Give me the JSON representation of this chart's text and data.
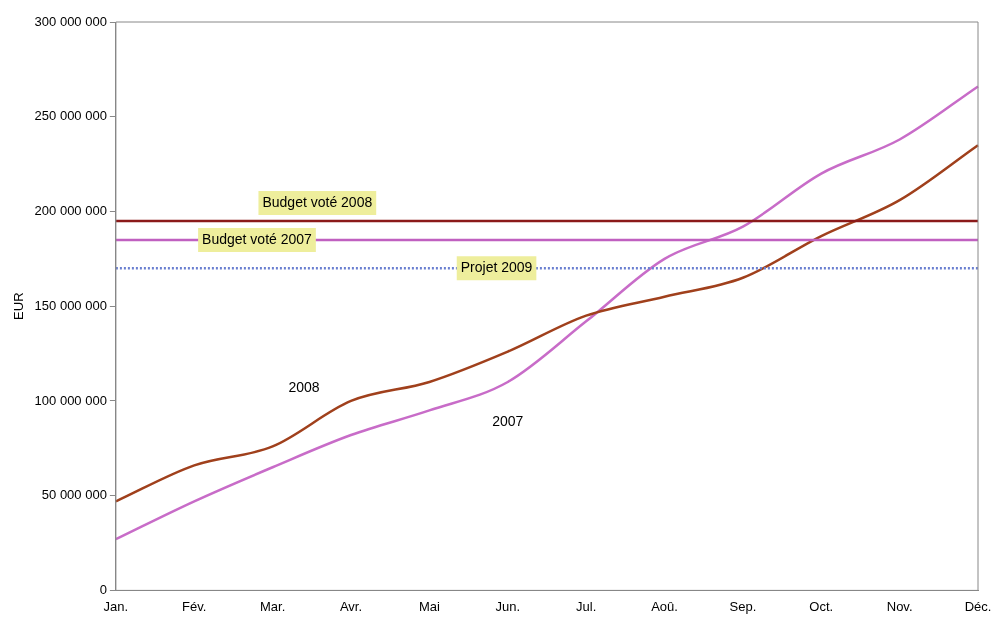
{
  "chart_data": {
    "type": "line",
    "ylabel": "EUR",
    "categories": [
      "Jan.",
      "Fév.",
      "Mar.",
      "Avr.",
      "Mai",
      "Jun.",
      "Jul.",
      "Aoû.",
      "Sep.",
      "Oct.",
      "Nov.",
      "Déc."
    ],
    "series": [
      {
        "name": "2008",
        "color": "#a0401c",
        "values": [
          47000000,
          66000000,
          76000000,
          100000000,
          110000000,
          126000000,
          145000000,
          155000000,
          165000000,
          187000000,
          206000000,
          235000000
        ]
      },
      {
        "name": "2007",
        "color": "#c86cc8",
        "values": [
          27000000,
          47000000,
          65000000,
          82000000,
          95000000,
          110000000,
          142000000,
          175000000,
          192000000,
          220000000,
          238000000,
          266000000
        ]
      }
    ],
    "ylim": [
      0,
      300000000
    ],
    "yticks": [
      {
        "value": 0,
        "label": "0"
      },
      {
        "value": 50000000,
        "label": "50 000 000"
      },
      {
        "value": 100000000,
        "label": "100 000 000"
      },
      {
        "value": 150000000,
        "label": "150 000 000"
      },
      {
        "value": 200000000,
        "label": "200 000 000"
      },
      {
        "value": 250000000,
        "label": "250 000 000"
      },
      {
        "value": 300000000,
        "label": "300 000 000"
      }
    ],
    "ref_lines": [
      {
        "axis": "y",
        "value": 195000000,
        "label": "Budget voté 2008",
        "color": "#8b1a1a",
        "line_style": "solid"
      },
      {
        "axis": "y",
        "value": 185000000,
        "label": "Budget voté 2007",
        "color": "#c060c0",
        "line_style": "solid"
      },
      {
        "axis": "y",
        "value": 170000000,
        "label": "Projet 2009",
        "color": "#6a7fd0",
        "line_style": "dotted"
      }
    ],
    "grid": false,
    "legend": false,
    "marker": "none",
    "line_style": "solid"
  }
}
